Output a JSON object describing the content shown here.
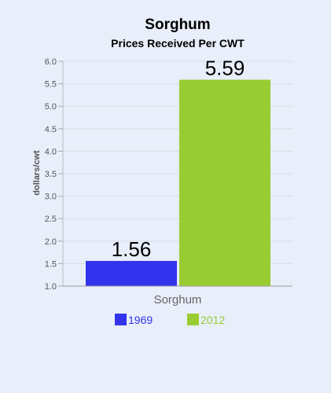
{
  "chart_data": {
    "type": "bar",
    "title": "Sorghum",
    "subtitle": "Prices Received Per CWT",
    "ylabel": "dollars/cwt",
    "xlabel": "",
    "categories": [
      "Sorghum"
    ],
    "ylim": [
      1.0,
      6.0
    ],
    "yticks": [
      "1.0",
      "1.5",
      "2.0",
      "2.5",
      "3.0",
      "3.5",
      "4.0",
      "4.5",
      "5.0",
      "5.5",
      "6.0"
    ],
    "grid": true,
    "legend_position": "bottom",
    "series": [
      {
        "name": "1969",
        "values": [
          1.56
        ],
        "label": "1.56",
        "color": "#3333ee"
      },
      {
        "name": "2012",
        "values": [
          5.59
        ],
        "label": "5.59",
        "color": "#99cc33"
      }
    ]
  }
}
